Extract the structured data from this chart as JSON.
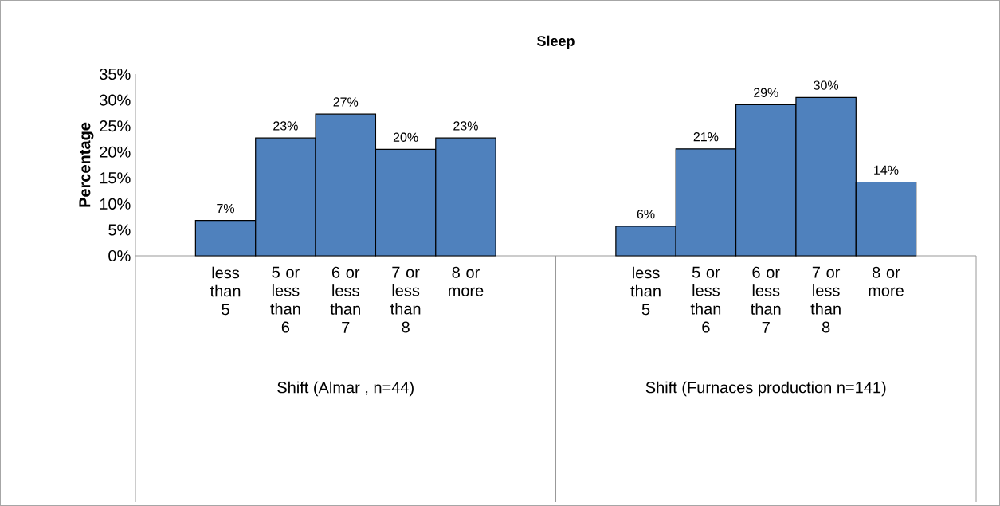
{
  "chart_data": {
    "type": "bar",
    "title": "Sleep",
    "ylabel": "Percentage",
    "categories": [
      null,
      "less than 5",
      "5 or less than 6",
      "6 or less than 7",
      "7 or less than 8",
      "8 or more",
      null,
      null,
      "less than 5",
      "5 or less than 6",
      "6 or less than 7",
      "7 or less than 8",
      "8 or more",
      null
    ],
    "values": [
      null,
      6.8,
      22.7,
      27.3,
      20.5,
      22.7,
      null,
      null,
      5.7,
      20.6,
      29.1,
      30.5,
      14.2,
      null
    ],
    "value_labels": [
      null,
      "7%",
      "23%",
      "27%",
      "20%",
      "23%",
      null,
      null,
      "6%",
      "21%",
      "29%",
      "30%",
      "14%",
      null
    ],
    "color": "#4f81bd",
    "ylim": [
      0,
      35
    ],
    "yticks": [
      {
        "value": 0,
        "label": "0%"
      },
      {
        "value": 5,
        "label": "5%"
      },
      {
        "value": 10,
        "label": "10%"
      },
      {
        "value": 15,
        "label": "15%"
      },
      {
        "value": 20,
        "label": "20%"
      },
      {
        "value": 25,
        "label": "25%"
      },
      {
        "value": 30,
        "label": "30%"
      },
      {
        "value": 35,
        "label": "35%"
      }
    ],
    "annotations": [
      "Shift (Almar , n=44)",
      "Shift (Furnaces production n=141)"
    ],
    "grid": false
  }
}
